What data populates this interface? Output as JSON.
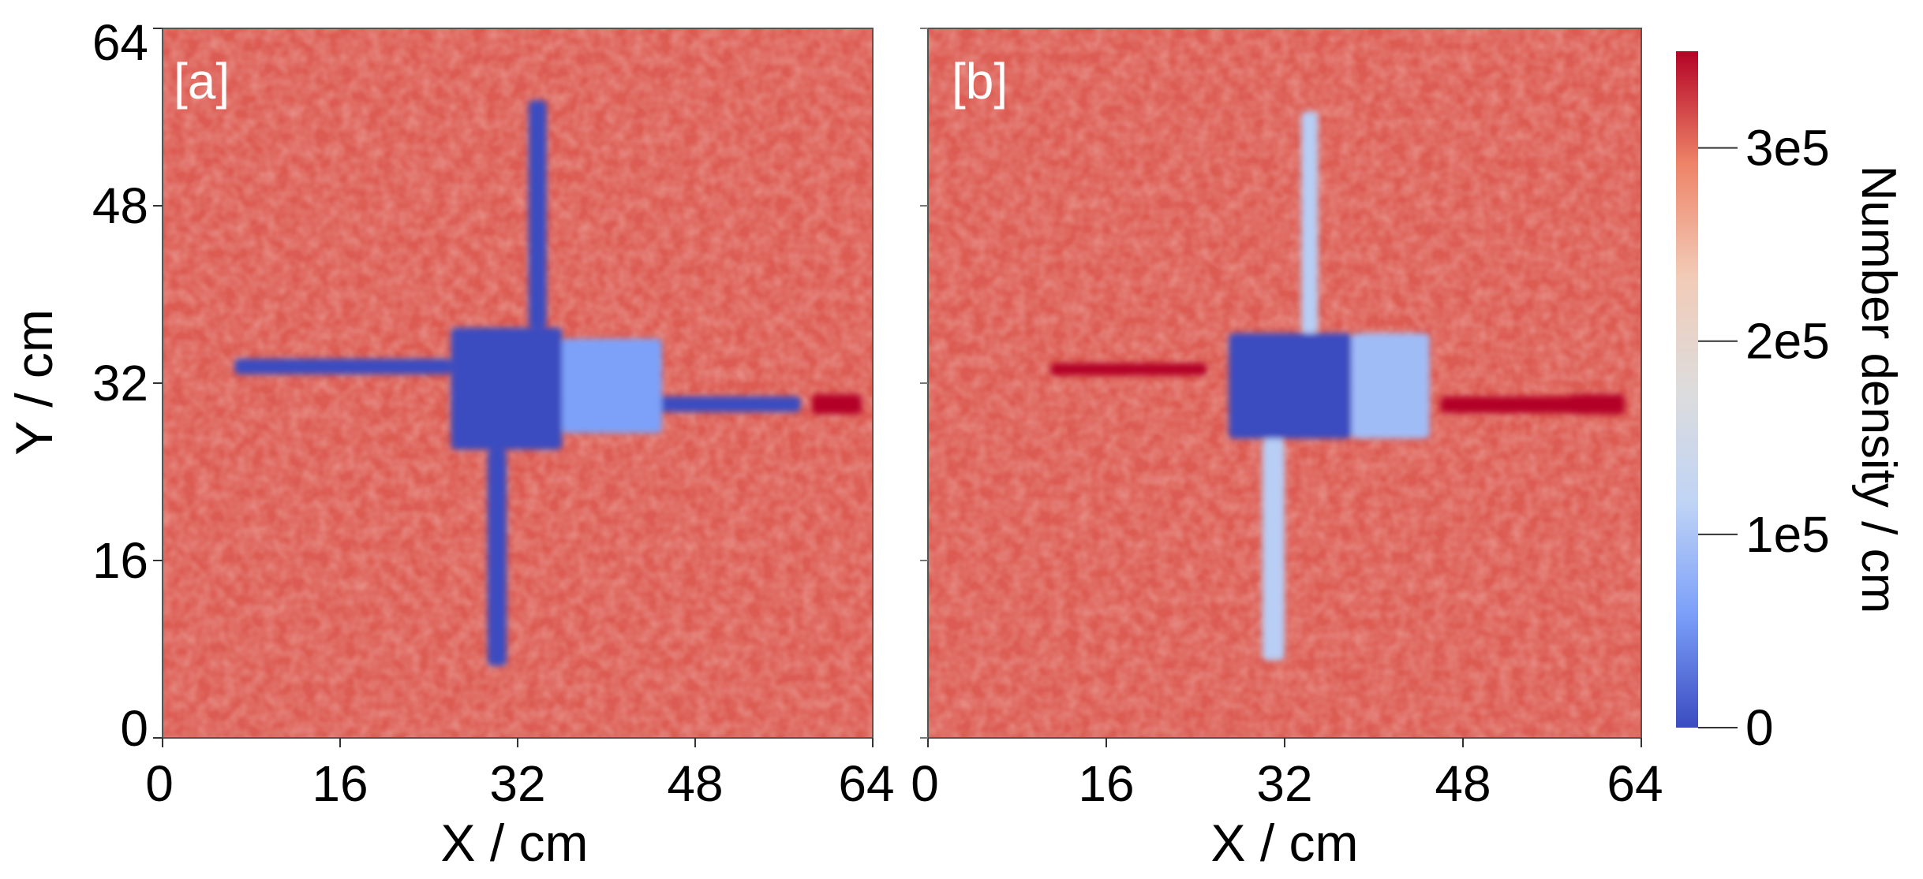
{
  "chart_data": [
    {
      "type": "heatmap",
      "panel_label": "[a]",
      "xlabel": "X / cm",
      "ylabel": "Y / cm",
      "xlim": [
        0,
        64
      ],
      "ylim": [
        0,
        64
      ],
      "xticks": [
        "0",
        "16",
        "32",
        "48",
        "64"
      ],
      "yticks": [
        "0",
        "16",
        "32",
        "48",
        "64"
      ],
      "background_density": 310000,
      "features": [
        {
          "shape": "rect",
          "x": [
            26,
            36
          ],
          "y": [
            26,
            37
          ],
          "value": 0
        },
        {
          "shape": "rect",
          "x": [
            6.5,
            26
          ],
          "y": [
            32.8,
            34.2
          ],
          "value": 0
        },
        {
          "shape": "rect",
          "x": [
            36,
            57.5
          ],
          "y": [
            29.4,
            30.8
          ],
          "value": 0
        },
        {
          "shape": "rect",
          "x": [
            33,
            34.6
          ],
          "y": [
            37,
            57.5
          ],
          "value": 0
        },
        {
          "shape": "rect",
          "x": [
            29.3,
            31
          ],
          "y": [
            6.5,
            26
          ],
          "value": 0
        },
        {
          "shape": "rect",
          "x": [
            36,
            45
          ],
          "y": [
            27.5,
            36
          ],
          "value": 60000
        },
        {
          "shape": "rect",
          "x": [
            58.5,
            63
          ],
          "y": [
            29.2,
            31
          ],
          "value": 350000
        }
      ]
    },
    {
      "type": "heatmap",
      "panel_label": "[b]",
      "xlabel": "X / cm",
      "ylabel": "",
      "xlim": [
        0,
        64
      ],
      "ylim": [
        0,
        64
      ],
      "xticks": [
        "0",
        "16",
        "32",
        "48",
        "64"
      ],
      "yticks": [],
      "background_density": 310000,
      "features": [
        {
          "shape": "rect",
          "x": [
            27,
            38
          ],
          "y": [
            27,
            36.5
          ],
          "value": 0
        },
        {
          "shape": "rect",
          "x": [
            38,
            45
          ],
          "y": [
            27,
            36.5
          ],
          "value": 90000
        },
        {
          "shape": "rect",
          "x": [
            33.5,
            35
          ],
          "y": [
            36.5,
            56.5
          ],
          "value": 110000
        },
        {
          "shape": "rect",
          "x": [
            30,
            32
          ],
          "y": [
            7,
            27
          ],
          "value": 110000
        },
        {
          "shape": "rect",
          "x": [
            11,
            25
          ],
          "y": [
            32.7,
            33.8
          ],
          "value": 360000
        },
        {
          "shape": "rect",
          "x": [
            46,
            60
          ],
          "y": [
            29.3,
            30.8
          ],
          "value": 350000
        },
        {
          "shape": "rect",
          "x": [
            57.5,
            62.5
          ],
          "y": [
            29.2,
            31
          ],
          "value": 390000
        }
      ]
    }
  ],
  "colorbar": {
    "title": "Number density / cm",
    "range": [
      0,
      350000
    ],
    "ticks": [
      {
        "value": 0,
        "label": "0"
      },
      {
        "value": 100000,
        "label": "1e5"
      },
      {
        "value": 200000,
        "label": "2e5"
      },
      {
        "value": 300000,
        "label": "3e5"
      }
    ],
    "colors": [
      "#3b4cc0",
      "#7b9ff9",
      "#c0d4f5",
      "#dddcdc",
      "#f2cbb7",
      "#ee8468",
      "#b40426"
    ]
  }
}
